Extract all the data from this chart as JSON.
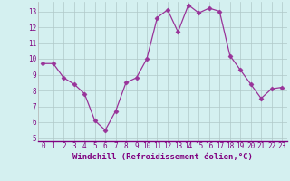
{
  "x": [
    0,
    1,
    2,
    3,
    4,
    5,
    6,
    7,
    8,
    9,
    10,
    11,
    12,
    13,
    14,
    15,
    16,
    17,
    18,
    19,
    20,
    21,
    22,
    23
  ],
  "y": [
    9.7,
    9.7,
    8.8,
    8.4,
    7.8,
    6.1,
    5.5,
    6.7,
    8.5,
    8.8,
    10.0,
    12.6,
    13.1,
    11.7,
    13.4,
    12.9,
    13.2,
    13.0,
    10.2,
    9.3,
    8.4,
    7.5,
    8.1,
    8.2
  ],
  "line_color": "#993399",
  "marker": "D",
  "marker_size": 2.5,
  "bg_color": "#d4f0f0",
  "grid_color": "#b0c8c8",
  "xlabel": "Windchill (Refroidissement éolien,°C)",
  "xlabel_fontsize": 6.5,
  "tick_fontsize": 5.5,
  "xlim": [
    -0.5,
    23.5
  ],
  "ylim": [
    4.8,
    13.6
  ],
  "yticks": [
    5,
    6,
    7,
    8,
    9,
    10,
    11,
    12,
    13
  ],
  "xticks": [
    0,
    1,
    2,
    3,
    4,
    5,
    6,
    7,
    8,
    9,
    10,
    11,
    12,
    13,
    14,
    15,
    16,
    17,
    18,
    19,
    20,
    21,
    22,
    23
  ]
}
